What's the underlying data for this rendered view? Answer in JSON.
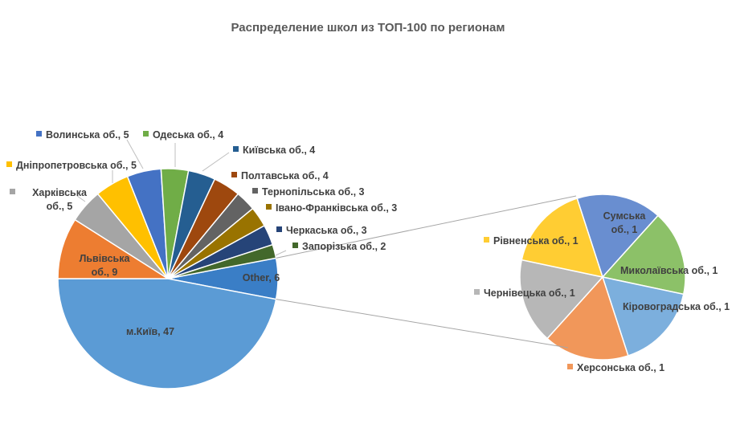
{
  "chart_data": {
    "type": "pie-of-pie",
    "title": "Распределение школ из ТОП-100 по регионам",
    "primary": [
      {
        "name": "Other",
        "value": 6,
        "label": "Other, 6",
        "color": "#3A7EC6"
      },
      {
        "name": "м.Київ",
        "value": 47,
        "label": "м.Київ, 47",
        "color": "#5B9BD5"
      },
      {
        "name": "Львівська об.",
        "value": 9,
        "label": "Львівська об., 9",
        "color": "#ED7D31"
      },
      {
        "name": "Харківська об.",
        "value": 5,
        "label": "Харківська об., 5",
        "color": "#A5A5A5"
      },
      {
        "name": "Дніпропетровська об.",
        "value": 5,
        "label": "Дніпропетровська об., 5",
        "color": "#FFC000"
      },
      {
        "name": "Волинська об.",
        "value": 5,
        "label": "Волинська об., 5",
        "color": "#4472C4"
      },
      {
        "name": "Одеська об.",
        "value": 4,
        "label": "Одеська об., 4",
        "color": "#70AD47"
      },
      {
        "name": "Київська об.",
        "value": 4,
        "label": "Київська об., 4",
        "color": "#255E91"
      },
      {
        "name": "Полтавська об.",
        "value": 4,
        "label": "Полтавська об., 4",
        "color": "#9E480E"
      },
      {
        "name": "Тернопільська об.",
        "value": 3,
        "label": "Тернопільська об., 3",
        "color": "#636363"
      },
      {
        "name": "Івано-Франківська об.",
        "value": 3,
        "label": "Івано-Франківська об., 3",
        "color": "#997300"
      },
      {
        "name": "Черкаська об.",
        "value": 3,
        "label": "Черкаська об., 3",
        "color": "#264478"
      },
      {
        "name": "Запорізька об.",
        "value": 2,
        "label": "Запорізька об., 2",
        "color": "#43682B"
      }
    ],
    "secondary": [
      {
        "name": "Сумська об.",
        "value": 1,
        "label": "Сумська об., 1",
        "color": "#698ED0"
      },
      {
        "name": "Миколаївська об.",
        "value": 1,
        "label": "Миколаївська об., 1",
        "color": "#8CC168"
      },
      {
        "name": "Кіровоградська об.",
        "value": 1,
        "label": "Кіровоградська об., 1",
        "color": "#7CAFDD"
      },
      {
        "name": "Херсонська об.",
        "value": 1,
        "label": "Херсонська об., 1",
        "color": "#F1975A"
      },
      {
        "name": "Чернівецька об.",
        "value": 1,
        "label": "Чернівецька об., 1",
        "color": "#B7B7B7"
      },
      {
        "name": "Рівненська об.",
        "value": 1,
        "label": "Рівненська об., 1",
        "color": "#FFCD33"
      }
    ]
  }
}
